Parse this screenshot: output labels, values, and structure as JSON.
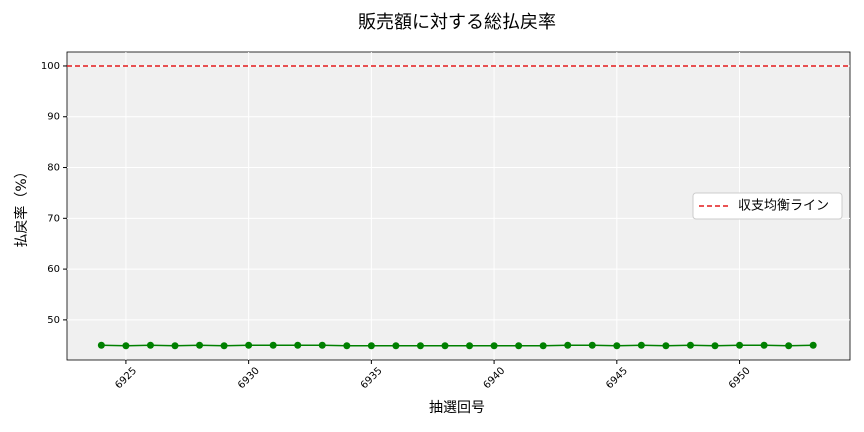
{
  "chart_data": {
    "type": "line",
    "title": "販売額に対する総払戻率",
    "x_label": "抽選回号",
    "y_label": "払戻率（%）",
    "x": [
      6924,
      6925,
      6926,
      6927,
      6928,
      6929,
      6930,
      6931,
      6932,
      6933,
      6934,
      6935,
      6936,
      6937,
      6938,
      6939,
      6940,
      6941,
      6942,
      6943,
      6944,
      6945,
      6946,
      6947,
      6948,
      6949,
      6950,
      6951,
      6952,
      6953
    ],
    "series": [
      {
        "color": "green",
        "values": [
          45.0,
          44.9,
          45.0,
          44.9,
          45.0,
          44.9,
          45.0,
          45.0,
          45.0,
          45.0,
          44.9,
          44.9,
          44.9,
          44.9,
          44.9,
          44.9,
          44.9,
          44.9,
          44.9,
          45.0,
          45.0,
          44.9,
          45.0,
          44.9,
          45.0,
          44.9,
          45.0,
          45.0,
          44.9,
          45.0
        ]
      }
    ],
    "hlines": [
      {
        "name": "収支均衡ライン",
        "value": 100,
        "color": "#e41a1c"
      }
    ],
    "xlim": [
      6922.6,
      6954.5
    ],
    "xticks": [
      6925,
      6930,
      6935,
      6940,
      6945,
      6950
    ],
    "ylim": [
      42.1,
      102.75
    ],
    "yticks": [
      50,
      60,
      70,
      80,
      90,
      100
    ],
    "grid": true,
    "legend": "right"
  }
}
